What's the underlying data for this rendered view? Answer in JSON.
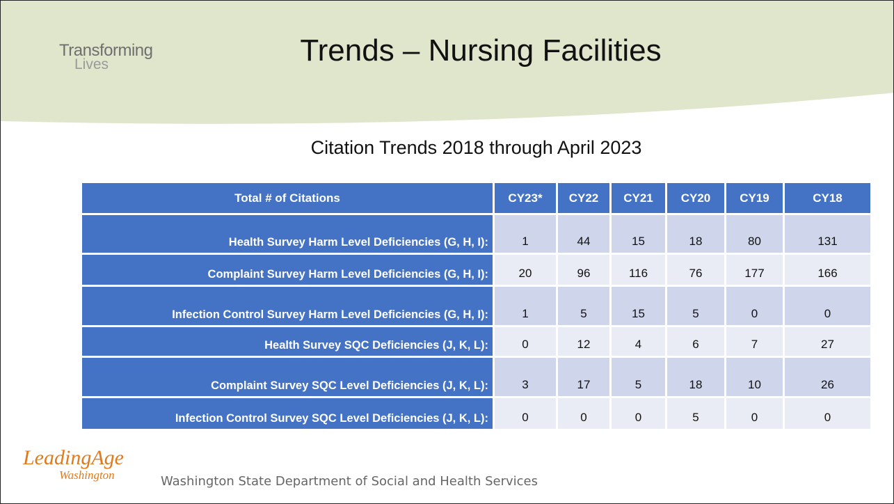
{
  "header": {
    "brand": [
      "Transforming",
      "Lives"
    ],
    "title": "Trends – Nursing Facilities"
  },
  "subtitle": "Citation Trends 2018 through April 2023",
  "table": {
    "columns": [
      "Total # of Citations",
      "CY23*",
      "CY22",
      "CY21",
      "CY20",
      "CY19",
      "CY18"
    ],
    "rows": [
      [
        "Health Survey Harm Level Deficiencies (G, H, I):",
        1,
        44,
        15,
        18,
        80,
        131
      ],
      [
        "Complaint Survey Harm Level Deficiencies (G, H, I):",
        20,
        96,
        116,
        76,
        177,
        166
      ],
      [
        "Infection Control Survey Harm Level Deficiencies (G, H, I):",
        1,
        5,
        15,
        5,
        0,
        0
      ],
      [
        "Health Survey SQC Deficiencies (J, K, L):",
        0,
        12,
        4,
        6,
        7,
        27
      ],
      [
        "Complaint Survey SQC Level Deficiencies (J, K, L):",
        3,
        17,
        5,
        18,
        10,
        26
      ],
      [
        "Infection Control Survey SQC Level Deficiencies (J, K, L):",
        0,
        0,
        0,
        5,
        0,
        0
      ]
    ]
  },
  "footer": {
    "logo": [
      "LeadingAge",
      "Washington"
    ],
    "text": "Washington State Department of Social and Health Services"
  }
}
